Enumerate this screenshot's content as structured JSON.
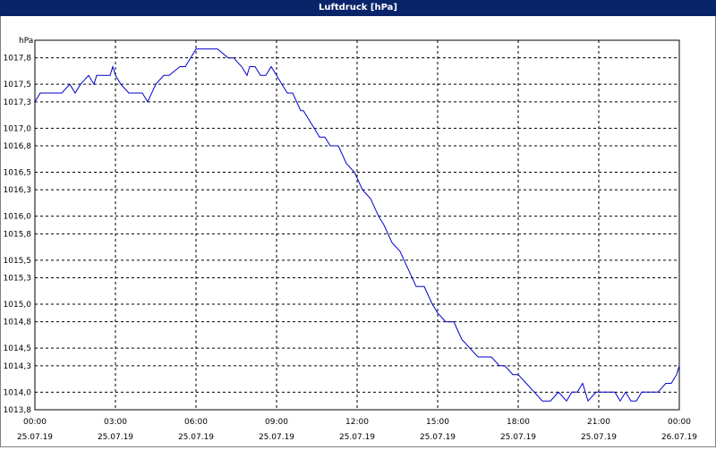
{
  "window": {
    "title": "Luftdruck [hPa]"
  },
  "chart_data": {
    "type": "line",
    "title": "Luftdruck [hPa]",
    "ylabel": "hPa",
    "xlabel": "",
    "ylim": [
      1013.8,
      1018.0
    ],
    "xlim_hours": [
      0,
      24
    ],
    "grid": true,
    "y_ticks": [
      "1013,8",
      "1014,0",
      "1014,3",
      "1014,5",
      "1014,8",
      "1015,0",
      "1015,3",
      "1015,5",
      "1015,8",
      "1016,0",
      "1016,3",
      "1016,5",
      "1016,8",
      "1017,0",
      "1017,3",
      "1017,5",
      "1017,8"
    ],
    "x_ticks": [
      {
        "time": "00:00",
        "date": "25.07.19"
      },
      {
        "time": "03:00",
        "date": "25.07.19"
      },
      {
        "time": "06:00",
        "date": "25.07.19"
      },
      {
        "time": "09:00",
        "date": "25.07.19"
      },
      {
        "time": "12:00",
        "date": "25.07.19"
      },
      {
        "time": "15:00",
        "date": "25.07.19"
      },
      {
        "time": "18:00",
        "date": "25.07.19"
      },
      {
        "time": "21:00",
        "date": "25.07.19"
      },
      {
        "time": "00:00",
        "date": "26.07.19"
      }
    ],
    "series": [
      {
        "color": "#0000cc",
        "x": [
          0,
          0.2,
          0.5,
          1,
          1.3,
          1.5,
          1.7,
          2,
          2.2,
          2.3,
          2.5,
          2.8,
          2.9,
          3,
          3.2,
          3.5,
          4,
          4.2,
          4.5,
          4.8,
          5,
          5.4,
          5.6,
          5.8,
          6,
          6.2,
          6.3,
          6.8,
          7.2,
          7.4,
          7.7,
          7.9,
          8,
          8.2,
          8.4,
          8.6,
          8.8,
          9,
          9.2,
          9.4,
          9.6,
          9.9,
          10,
          10.2,
          10.4,
          10.6,
          10.8,
          11,
          11.3,
          11.6,
          11.9,
          12.2,
          12.5,
          12.8,
          13,
          13.3,
          13.6,
          13.9,
          14.2,
          14.5,
          14.8,
          15,
          15.3,
          15.6,
          15.9,
          16.2,
          16.5,
          16.8,
          17,
          17.3,
          17.5,
          17.8,
          18,
          18.3,
          18.6,
          18.9,
          19.2,
          19.5,
          19.8,
          20,
          20.2,
          20.4,
          20.6,
          20.9,
          21.2,
          21.4,
          21.6,
          21.8,
          22,
          22.2,
          22.4,
          22.6,
          22.9,
          23.2,
          23.5,
          23.7,
          23.9,
          24
        ],
        "y": [
          1017.3,
          1017.4,
          1017.4,
          1017.4,
          1017.5,
          1017.4,
          1017.5,
          1017.6,
          1017.5,
          1017.6,
          1017.6,
          1017.6,
          1017.7,
          1017.6,
          1017.5,
          1017.4,
          1017.4,
          1017.3,
          1017.5,
          1017.6,
          1017.6,
          1017.7,
          1017.7,
          1017.8,
          1017.9,
          1017.9,
          1017.9,
          1017.9,
          1017.8,
          1017.8,
          1017.7,
          1017.6,
          1017.7,
          1017.7,
          1017.6,
          1017.6,
          1017.7,
          1017.6,
          1017.5,
          1017.4,
          1017.4,
          1017.2,
          1017.2,
          1017.1,
          1017.0,
          1016.9,
          1016.9,
          1016.8,
          1016.8,
          1016.6,
          1016.5,
          1016.3,
          1016.2,
          1016.0,
          1015.9,
          1015.7,
          1015.6,
          1015.4,
          1015.2,
          1015.2,
          1015.0,
          1014.9,
          1014.8,
          1014.8,
          1014.6,
          1014.5,
          1014.4,
          1014.4,
          1014.4,
          1014.3,
          1014.3,
          1014.2,
          1014.2,
          1014.1,
          1014.0,
          1013.9,
          1013.9,
          1014.0,
          1013.9,
          1014.0,
          1014.0,
          1014.1,
          1013.9,
          1014.0,
          1014.0,
          1014.0,
          1014.0,
          1013.9,
          1014.0,
          1013.9,
          1013.9,
          1014.0,
          1014.0,
          1014.0,
          1014.1,
          1014.1,
          1014.2,
          1014.3
        ]
      }
    ]
  }
}
